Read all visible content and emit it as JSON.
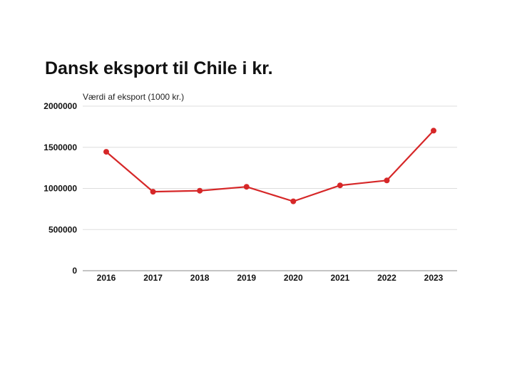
{
  "chart_data": {
    "type": "line",
    "title": "Dansk eksport til Chile i kr.",
    "ylabel": "Værdi af eksport (1000 kr.)",
    "xlabel": "",
    "categories": [
      "2016",
      "2017",
      "2018",
      "2019",
      "2020",
      "2021",
      "2022",
      "2023"
    ],
    "series": [
      {
        "values": [
          1445000,
          960000,
          972000,
          1020000,
          843000,
          1037000,
          1097000,
          1702000
        ],
        "color": "#d62728"
      }
    ],
    "ylim": [
      0,
      2000000
    ],
    "yticks": [
      "0",
      "500000",
      "1000000",
      "1500000",
      "2000000"
    ],
    "grid": true,
    "legend": "none"
  }
}
